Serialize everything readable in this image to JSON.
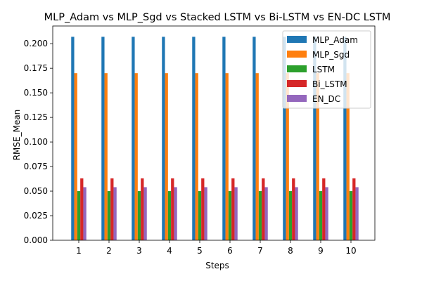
{
  "chart_data": {
    "type": "bar",
    "title": "MLP_Adam vs MLP_Sgd vs Stacked LSTM vs Bi-LSTM vs EN-DC LSTM",
    "xlabel": "Steps",
    "ylabel": "RMSE_Mean",
    "categories": [
      "1",
      "2",
      "3",
      "4",
      "5",
      "6",
      "7",
      "8",
      "9",
      "10"
    ],
    "ylim": [
      0,
      0.218
    ],
    "yticks": [
      "0.000",
      "0.025",
      "0.050",
      "0.075",
      "0.100",
      "0.125",
      "0.150",
      "0.175",
      "0.200"
    ],
    "grid": false,
    "legend_position": "top-right",
    "series": [
      {
        "name": "MLP_Adam",
        "color": "#1f77b4",
        "values": [
          0.207,
          0.207,
          0.207,
          0.207,
          0.207,
          0.207,
          0.207,
          0.207,
          0.207,
          0.207
        ]
      },
      {
        "name": "MLP_Sgd",
        "color": "#ff7f0e",
        "values": [
          0.17,
          0.17,
          0.17,
          0.17,
          0.17,
          0.17,
          0.17,
          0.17,
          0.17,
          0.17
        ]
      },
      {
        "name": "LSTM",
        "color": "#2ca02c",
        "values": [
          0.05,
          0.05,
          0.05,
          0.05,
          0.05,
          0.05,
          0.05,
          0.05,
          0.05,
          0.05
        ]
      },
      {
        "name": "Bi_LSTM",
        "color": "#d62728",
        "values": [
          0.063,
          0.063,
          0.063,
          0.063,
          0.063,
          0.063,
          0.063,
          0.063,
          0.063,
          0.063
        ]
      },
      {
        "name": "EN_DC",
        "color": "#9467bd",
        "values": [
          0.054,
          0.054,
          0.054,
          0.054,
          0.054,
          0.054,
          0.054,
          0.054,
          0.054,
          0.054
        ]
      }
    ]
  }
}
